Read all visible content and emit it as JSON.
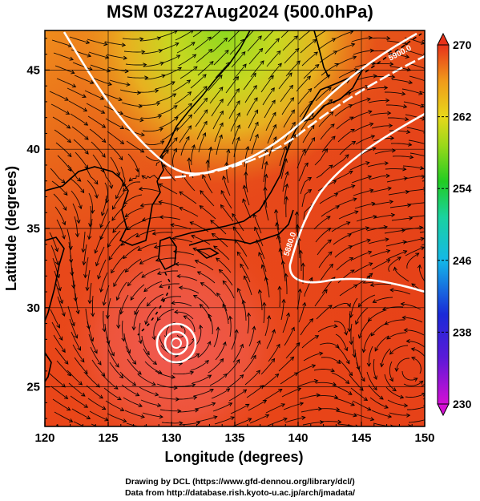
{
  "title": "MSM 03Z27Aug2024 (500.0hPa)",
  "x_axis": {
    "label": "Longitude (degrees)",
    "ticks": [
      "120",
      "125",
      "130",
      "135",
      "140",
      "145",
      "150"
    ]
  },
  "y_axis": {
    "label": "Latitude  (degrees)",
    "ticks": [
      "25",
      "30",
      "35",
      "40",
      "45"
    ]
  },
  "colorbar": {
    "ticks": [
      "230",
      "238",
      "246",
      "254",
      "262",
      "270"
    ],
    "min": 230,
    "max": 270
  },
  "contour_labels": [
    "5900.0",
    "5880.0"
  ],
  "credits": {
    "line1": "Drawing by DCL (https://www.gfd-dennou.org/library/dcl/)",
    "line2": "Data from http://database.rish.kyoto-u.ac.jp/arch/jmadata/"
  },
  "map_extent": {
    "lon": [
      120,
      150
    ],
    "lat": [
      22.5,
      47.5
    ]
  },
  "typhoon_center": {
    "lon": 130.6,
    "lat": 28.4
  },
  "colors": {
    "warm": "#e83a1a",
    "cool": "#9acd32",
    "contour": "#ffffff",
    "streamline": "#000000"
  }
}
